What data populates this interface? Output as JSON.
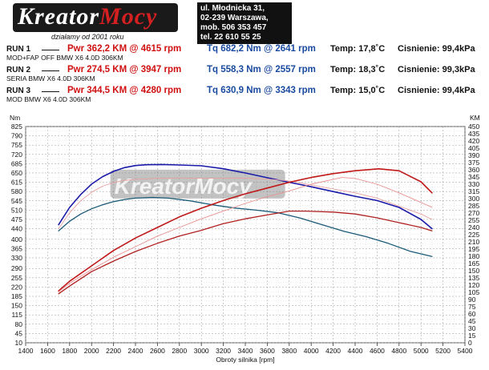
{
  "header": {
    "logo_text_left": "Kreator",
    "logo_text_right": "Mocy",
    "logo_subtitle": "działamy od 2001 roku",
    "address_lines": [
      "ul. Młodnicka 31,",
      "02-239  Warszawa,",
      "mob.  506 353 457",
      "tel.  22 610 55 25"
    ]
  },
  "runs": [
    {
      "name": "RUN 1",
      "pwr": "Pwr  362,2 KM @ 4615 rpm",
      "tq": "Tq 682,2 Nm @ 2641 rpm",
      "temp": "Temp: 17,8˚C",
      "pressure": "Cisnienie: 99,4kPa",
      "desc": "MOD+FAP OFF BMW X6 4.0D 306KM"
    },
    {
      "name": "RUN 2",
      "pwr": "Pwr  274,5 KM @ 3947 rpm",
      "tq": "Tq 558,3 Nm @ 2557 rpm",
      "temp": "Temp: 18,3˚C",
      "pressure": "Cisnienie: 99,3kPa",
      "desc": "SERIA BMW X6 4.0D 306KM"
    },
    {
      "name": "RUN 3",
      "pwr": "Pwr  344,5 KM @ 4280 rpm",
      "tq": "Tq 630,9 Nm @ 3343 rpm",
      "temp": "Temp: 15,0˚C",
      "pressure": "Cisnienie: 99,4kPa",
      "desc": "MOD BMW X6 4.0D 306KM"
    }
  ],
  "chart_data": {
    "type": "line",
    "xlabel": "Obroty silnika [rpm]",
    "ylabel_left": "Nm",
    "ylabel_right": "KM",
    "xlim": [
      1400,
      5400
    ],
    "xticks": [
      1400,
      1600,
      1800,
      2000,
      2200,
      2400,
      2600,
      2800,
      3000,
      3200,
      3400,
      3600,
      3800,
      4000,
      4200,
      4400,
      4600,
      4800,
      5000,
      5200,
      5400
    ],
    "ylim_left": [
      10,
      825
    ],
    "yticks_left": [
      10,
      45,
      80,
      115,
      150,
      185,
      220,
      255,
      290,
      330,
      365,
      400,
      440,
      475,
      510,
      545,
      580,
      615,
      650,
      685,
      720,
      755,
      790,
      825
    ],
    "ylim_right": [
      0,
      450
    ],
    "yticks_right": [
      0,
      15,
      30,
      45,
      60,
      75,
      90,
      105,
      120,
      135,
      150,
      165,
      180,
      195,
      210,
      225,
      240,
      255,
      270,
      285,
      300,
      315,
      330,
      345,
      360,
      375,
      390,
      405,
      420,
      435,
      450
    ],
    "watermark": "KreatorMocy",
    "series": [
      {
        "name": "RUN 1",
        "quantity": "torque",
        "axis": "left",
        "color": "#1a1aa8",
        "width": 1.6,
        "x": [
          1700,
          1800,
          1900,
          2000,
          2100,
          2200,
          2300,
          2400,
          2500,
          2641,
          2800,
          3000,
          3200,
          3400,
          3600,
          3800,
          4000,
          4200,
          4400,
          4600,
          4800,
          5000,
          5100
        ],
        "y": [
          455,
          520,
          568,
          608,
          636,
          656,
          670,
          678,
          681,
          682,
          680,
          677,
          666,
          650,
          632,
          615,
          598,
          580,
          562,
          546,
          520,
          475,
          440
        ]
      },
      {
        "name": "RUN 2",
        "quantity": "torque",
        "axis": "left",
        "color": "#1a5a78",
        "width": 1.3,
        "x": [
          1700,
          1800,
          1900,
          2000,
          2100,
          2200,
          2300,
          2400,
          2557,
          2700,
          2900,
          3100,
          3300,
          3500,
          3700,
          3900,
          4100,
          4300,
          4500,
          4700,
          4900,
          5100
        ],
        "y": [
          432,
          468,
          495,
          515,
          530,
          542,
          550,
          555,
          558,
          555,
          545,
          530,
          518,
          510,
          500,
          480,
          455,
          430,
          410,
          385,
          355,
          335
        ]
      },
      {
        "name": "RUN 3",
        "quantity": "torque",
        "axis": "left",
        "color": "#e8a0a0",
        "width": 0.9,
        "x": [
          1700,
          1800,
          1900,
          2000,
          2100,
          2200,
          2300,
          2400,
          2500,
          2600,
          2800,
          3000,
          3200,
          3343,
          3600,
          3800,
          4000,
          4200,
          4400,
          4600,
          4800,
          5000,
          5100
        ],
        "y": [
          440,
          500,
          545,
          577,
          600,
          614,
          622,
          626,
          628,
          630,
          631,
          630,
          630,
          631,
          627,
          620,
          605,
          590,
          575,
          555,
          525,
          495,
          475
        ]
      },
      {
        "name": "RUN 1",
        "quantity": "power",
        "axis": "right",
        "color": "#c01818",
        "width": 1.6,
        "x": [
          1700,
          1800,
          2000,
          2200,
          2400,
          2600,
          2800,
          3000,
          3200,
          3400,
          3600,
          3800,
          4000,
          4200,
          4400,
          4615,
          4800,
          5000,
          5100
        ],
        "y": [
          108,
          128,
          160,
          192,
          218,
          240,
          262,
          280,
          296,
          310,
          322,
          334,
          344,
          352,
          358,
          362,
          358,
          335,
          312
        ]
      },
      {
        "name": "RUN 2",
        "quantity": "power",
        "axis": "right",
        "color": "#b02020",
        "width": 1.3,
        "x": [
          1700,
          1800,
          2000,
          2200,
          2400,
          2600,
          2800,
          3000,
          3200,
          3400,
          3600,
          3800,
          3947,
          4200,
          4400,
          4600,
          4800,
          5000,
          5100
        ],
        "y": [
          102,
          118,
          148,
          170,
          190,
          207,
          222,
          234,
          248,
          258,
          266,
          274,
          274,
          272,
          268,
          260,
          250,
          240,
          233
        ]
      },
      {
        "name": "RUN 3",
        "quantity": "power",
        "axis": "right",
        "color": "#e89090",
        "width": 0.9,
        "x": [
          1700,
          1800,
          2000,
          2200,
          2400,
          2600,
          2800,
          3000,
          3200,
          3400,
          3600,
          3800,
          4000,
          4280,
          4400,
          4600,
          4800,
          5000,
          5100
        ],
        "y": [
          106,
          124,
          152,
          178,
          200,
          222,
          240,
          258,
          274,
          290,
          304,
          316,
          330,
          344,
          342,
          330,
          312,
          292,
          282
        ]
      }
    ]
  }
}
